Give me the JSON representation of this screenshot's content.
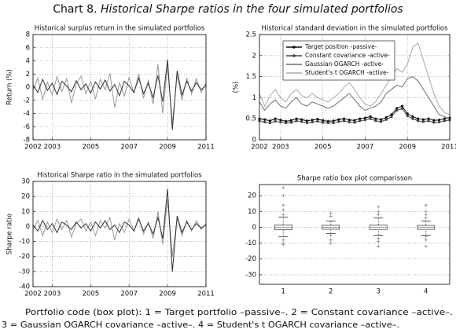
{
  "header": {
    "label": "Chart 8.",
    "title": "Historical Sharpe ratios in the four simulated portfolios"
  },
  "caption": [
    "Portfolio code (box plot): 1 = Target portfolio –passive–. 2 = Constant covariance –active–.",
    "3 = Gaussian OGARCH covariance –active–. 4 = Student's t OGARCH covariance –active–."
  ],
  "chart_data": [
    {
      "type": "line",
      "title": "Historical surplus return in the simulated portfolios",
      "y_label": "Return (%)",
      "x": [
        2002,
        2002.25,
        2002.5,
        2002.75,
        2003,
        2003.25,
        2003.5,
        2003.75,
        2004,
        2004.25,
        2004.5,
        2004.75,
        2005,
        2005.25,
        2005.5,
        2005.75,
        2006,
        2006.25,
        2006.5,
        2006.75,
        2007,
        2007.25,
        2007.5,
        2007.75,
        2008,
        2008.25,
        2008.5,
        2008.75,
        2009,
        2009.25,
        2009.5,
        2009.75,
        2010,
        2010.25,
        2010.5,
        2010.75,
        2011
      ],
      "xlim": [
        2002,
        2011
      ],
      "xticks": [
        2002,
        2003,
        2005,
        2007,
        2009,
        2011
      ],
      "ylim": [
        -8,
        8
      ],
      "yticks": [
        8,
        6,
        4,
        2,
        0,
        -2,
        -4,
        -6,
        -8
      ],
      "grid": true,
      "series": [
        {
          "color": "#9a9a9a",
          "values": [
            -0.5,
            1.4,
            -1.9,
            0.8,
            -1.2,
            1.6,
            -0.7,
            1.3,
            -2.4,
            0.5,
            1.7,
            -1.0,
            0.9,
            -1.8,
            1.2,
            -0.4,
            2.1,
            -3.1,
            0.7,
            -1.4,
            1.5,
            -0.9,
            2.0,
            -1.7,
            1.1,
            -2.6,
            3.5,
            -4.0,
            3.2,
            -5.5,
            1.9,
            -2.0,
            1.4,
            -1.1,
            1.3,
            -0.8,
            0.6
          ]
        },
        {
          "color": "#333333",
          "values": [
            0.3,
            -0.8,
            1.2,
            -0.5,
            0.6,
            -1.1,
            0.9,
            0.2,
            -0.7,
            1.0,
            -0.4,
            0.5,
            -0.9,
            0.8,
            -0.3,
            1.1,
            -0.6,
            0.4,
            -1.3,
            0.9,
            0.2,
            -0.8,
            1.4,
            -1.0,
            0.6,
            -1.6,
            1.8,
            -2.2,
            4.2,
            -6.5,
            2.5,
            -1.2,
            0.9,
            -0.6,
            0.7,
            -0.4,
            0.3
          ]
        }
      ]
    },
    {
      "type": "line",
      "title": "Historical standard deviation in the simulated portfolios",
      "y_label": "(%)",
      "x": [
        2002,
        2002.25,
        2002.5,
        2002.75,
        2003,
        2003.25,
        2003.5,
        2003.75,
        2004,
        2004.25,
        2004.5,
        2004.75,
        2005,
        2005.25,
        2005.5,
        2005.75,
        2006,
        2006.25,
        2006.5,
        2006.75,
        2007,
        2007.25,
        2007.5,
        2007.75,
        2008,
        2008.25,
        2008.5,
        2008.75,
        2009,
        2009.25,
        2009.5,
        2009.75,
        2010,
        2010.25,
        2010.5,
        2010.75,
        2011
      ],
      "xlim": [
        2002,
        2011
      ],
      "xticks": [
        2002,
        2003,
        2005,
        2007,
        2009,
        2011
      ],
      "ylim": [
        0,
        2.5
      ],
      "yticks": [
        0,
        0.5,
        1,
        1.5,
        2,
        2.5
      ],
      "grid": true,
      "legend": "upper left",
      "series": [
        {
          "name": "Target position -passive-",
          "color": "#111111",
          "marker": true,
          "values": [
            0.5,
            0.48,
            0.45,
            0.5,
            0.47,
            0.44,
            0.46,
            0.5,
            0.48,
            0.45,
            0.47,
            0.49,
            0.46,
            0.44,
            0.45,
            0.48,
            0.5,
            0.47,
            0.46,
            0.5,
            0.52,
            0.55,
            0.5,
            0.48,
            0.53,
            0.6,
            0.75,
            0.8,
            0.62,
            0.55,
            0.5,
            0.48,
            0.5,
            0.46,
            0.47,
            0.5,
            0.52
          ]
        },
        {
          "name": "Constant covariance -active-",
          "color": "#444444",
          "marker": true,
          "values": [
            0.45,
            0.42,
            0.4,
            0.44,
            0.42,
            0.4,
            0.41,
            0.45,
            0.43,
            0.4,
            0.42,
            0.44,
            0.41,
            0.4,
            0.4,
            0.43,
            0.45,
            0.42,
            0.41,
            0.45,
            0.47,
            0.5,
            0.45,
            0.43,
            0.48,
            0.55,
            0.7,
            0.74,
            0.57,
            0.5,
            0.45,
            0.43,
            0.45,
            0.41,
            0.42,
            0.45,
            0.47
          ]
        },
        {
          "name": "Gaussian OGARCH -active-",
          "color": "#6e6e6e",
          "values": [
            0.9,
            0.7,
            0.85,
            0.95,
            0.8,
            0.75,
            0.9,
            1.0,
            0.85,
            0.8,
            0.9,
            0.85,
            0.8,
            0.75,
            0.8,
            0.9,
            1.0,
            1.1,
            0.95,
            0.8,
            0.7,
            0.75,
            0.8,
            0.9,
            1.1,
            1.2,
            1.3,
            1.25,
            1.45,
            1.5,
            1.4,
            1.2,
            1.0,
            0.8,
            0.6,
            0.55,
            0.5
          ]
        },
        {
          "name": "Student's t OGARCH -active-",
          "color": "#a8a8a8",
          "values": [
            1.1,
            0.8,
            1.05,
            1.2,
            1.0,
            0.9,
            1.1,
            1.2,
            1.05,
            1.0,
            1.1,
            1.0,
            0.95,
            0.9,
            1.0,
            1.1,
            1.25,
            1.35,
            1.2,
            1.0,
            0.85,
            0.8,
            0.9,
            1.1,
            1.3,
            1.5,
            1.7,
            1.6,
            1.8,
            2.2,
            2.3,
            1.9,
            1.5,
            1.1,
            0.8,
            0.65,
            0.6
          ]
        }
      ]
    },
    {
      "type": "line",
      "title": "Historical Sharpe ratio in the simulated portfolios",
      "y_label": "Sharpe ratio",
      "x": [
        2002,
        2002.25,
        2002.5,
        2002.75,
        2003,
        2003.25,
        2003.5,
        2003.75,
        2004,
        2004.25,
        2004.5,
        2004.75,
        2005,
        2005.25,
        2005.5,
        2005.75,
        2006,
        2006.25,
        2006.5,
        2006.75,
        2007,
        2007.25,
        2007.5,
        2007.75,
        2008,
        2008.25,
        2008.5,
        2008.75,
        2009,
        2009.25,
        2009.5,
        2009.75,
        2010,
        2010.25,
        2010.5,
        2010.75,
        2011
      ],
      "xlim": [
        2002,
        2011
      ],
      "xticks": [
        2002,
        2003,
        2005,
        2007,
        2009,
        2011
      ],
      "ylim": [
        -40,
        30
      ],
      "yticks": [
        30,
        20,
        10,
        0,
        -10,
        -20,
        -30,
        -40
      ],
      "grid": true,
      "series": [
        {
          "color": "#9a9a9a",
          "values": [
            -2,
            4,
            -6,
            3,
            -4,
            5,
            -2,
            4,
            -7,
            2,
            5,
            -3,
            3,
            -6,
            4,
            -1,
            6,
            -9,
            2,
            -4,
            5,
            -3,
            6,
            -5,
            3,
            -8,
            10,
            -12,
            18,
            -20,
            6,
            -6,
            4,
            -3,
            4,
            -2,
            2
          ]
        },
        {
          "color": "#333333",
          "values": [
            1,
            -3,
            4,
            -2,
            2,
            -4,
            3,
            1,
            -2,
            3,
            -1,
            2,
            -3,
            3,
            -1,
            4,
            -2,
            1,
            -4,
            3,
            1,
            -3,
            5,
            -3,
            2,
            -5,
            6,
            -8,
            25,
            -30,
            7,
            -4,
            3,
            -2,
            2,
            -1,
            1
          ]
        }
      ]
    },
    {
      "type": "box",
      "title": "Sharpe ratio box plot comparisson",
      "categories": [
        "1",
        "2",
        "3",
        "4"
      ],
      "ylim": [
        -36,
        27
      ],
      "yticks": [
        20,
        10,
        0,
        -10,
        -20,
        -30
      ],
      "grid": true,
      "color": "#555555",
      "boxes": [
        {
          "whisker_low": -6,
          "q1": -1.5,
          "median": 0,
          "q3": 1.5,
          "whisker_high": 6.5,
          "outliers": [
            8,
            11,
            14,
            20,
            25,
            -8,
            -10,
            -11
          ]
        },
        {
          "whisker_low": -4,
          "q1": -1.2,
          "median": 0,
          "q3": 1.3,
          "whisker_high": 4,
          "outliers": [
            7,
            9,
            -5,
            -8,
            -10
          ]
        },
        {
          "whisker_low": -5,
          "q1": -1.4,
          "median": 0,
          "q3": 1.4,
          "whisker_high": 6,
          "outliers": [
            8,
            10,
            13,
            -7,
            -9,
            -12
          ]
        },
        {
          "whisker_low": -5,
          "q1": -1.3,
          "median": 0,
          "q3": 1.2,
          "whisker_high": 4,
          "outliers": [
            6,
            8,
            10,
            14,
            -6,
            -8,
            -12
          ]
        }
      ]
    }
  ]
}
